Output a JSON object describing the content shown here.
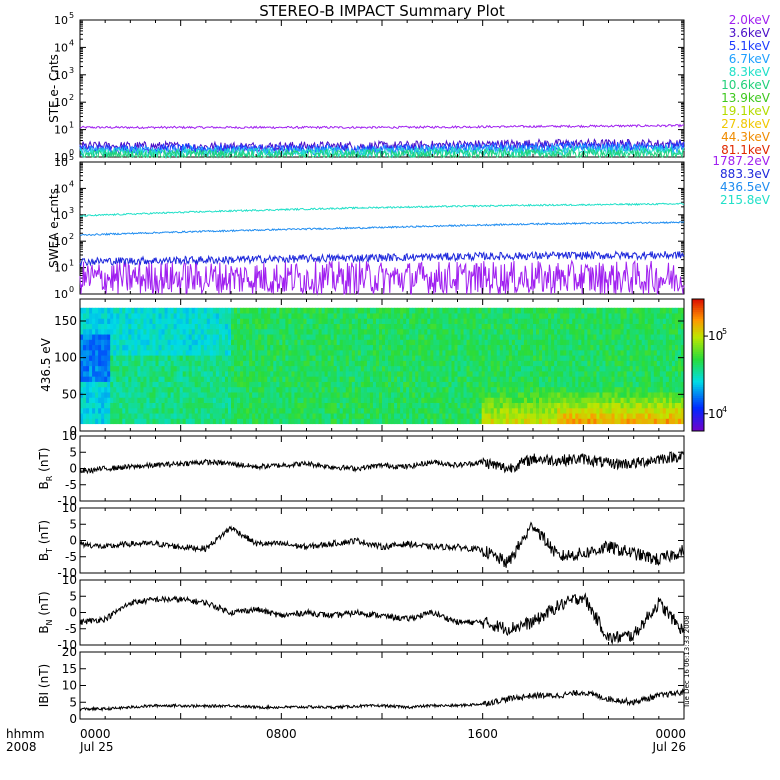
{
  "title": "STEREO-B IMPACT Summary Plot",
  "timestamp": "Tue Dec 16 06:13:33 2008",
  "time_axis": {
    "label_line1": "hhmm",
    "label_line2": "2008",
    "ticks": [
      {
        "hour": 0,
        "top": "0000",
        "bottom": "Jul 25"
      },
      {
        "hour": 8,
        "top": "0800",
        "bottom": ""
      },
      {
        "hour": 16,
        "top": "1600",
        "bottom": ""
      },
      {
        "hour": 24,
        "top": "0000",
        "bottom": "Jul 26"
      }
    ]
  },
  "ste_legend": [
    {
      "label": "2.0keV",
      "color": "#a020f0"
    },
    {
      "label": "3.6keV",
      "color": "#4b0fc8"
    },
    {
      "label": "5.1keV",
      "color": "#1e3cff"
    },
    {
      "label": "6.7keV",
      "color": "#1fa0ff"
    },
    {
      "label": "8.3keV",
      "color": "#20e0c8"
    },
    {
      "label": "10.6keV",
      "color": "#22d07a"
    },
    {
      "label": "13.9keV",
      "color": "#3ec81e"
    },
    {
      "label": "19.1keV",
      "color": "#b4dc00"
    },
    {
      "label": "27.8keV",
      "color": "#f0c800"
    },
    {
      "label": "44.3keV",
      "color": "#f08c00"
    },
    {
      "label": "81.1keV",
      "color": "#e02800"
    }
  ],
  "swea_legend": [
    {
      "label": "1787.2eV",
      "color": "#a020f0"
    },
    {
      "label": "883.3eV",
      "color": "#1e28dc"
    },
    {
      "label": "436.5eV",
      "color": "#1e8cf0"
    },
    {
      "label": "215.8eV",
      "color": "#20e0c8"
    }
  ],
  "panels": {
    "ste": {
      "ylabel": "STE e- Cnts",
      "yticks": [
        "10",
        "10",
        "10",
        "10",
        "10",
        "10"
      ],
      "yexp": [
        "0",
        "1",
        "2",
        "3",
        "4",
        "5"
      ]
    },
    "swea": {
      "ylabel": "SWEA e- cnts",
      "yticks": [
        "10",
        "10",
        "10",
        "10",
        "10",
        "10"
      ],
      "yexp": [
        "0",
        "1",
        "2",
        "3",
        "4",
        "5"
      ]
    },
    "spec": {
      "ylabel": "436.5 eV",
      "yticks": [
        "0",
        "50",
        "100",
        "150"
      ],
      "colorbar_ticks": [
        {
          "base": "10",
          "exp": "5"
        },
        {
          "base": "10",
          "exp": "4"
        }
      ]
    },
    "br": {
      "ylabel": "B",
      "ysub": "R",
      "yunit": "(nT)",
      "yticks": [
        "10",
        "5",
        "0",
        "-5",
        "-10"
      ]
    },
    "bt": {
      "ylabel": "B",
      "ysub": "T",
      "yunit": "(nT)",
      "yticks": [
        "10",
        "5",
        "0",
        "-5",
        "-10"
      ]
    },
    "bn": {
      "ylabel": "B",
      "ysub": "N",
      "yunit": "(nT)",
      "yticks": [
        "10",
        "5",
        "0",
        "-5",
        "-10"
      ]
    },
    "bmag": {
      "ylabel": "IBI",
      "yunit": "(nT)",
      "yticks": [
        "20",
        "15",
        "10",
        "5",
        "0"
      ]
    }
  },
  "chart_data": [
    {
      "type": "line",
      "panel": "ste",
      "x_unit": "hours since 2008-07-25 00:00",
      "xlim": [
        0,
        24
      ],
      "ylim": [
        1,
        100000
      ],
      "yscale": "log",
      "series": [
        {
          "name": "2.0keV",
          "x": [
            0,
            6,
            12,
            18,
            24
          ],
          "y": [
            12,
            12,
            12,
            13,
            14
          ]
        },
        {
          "name": "3.6keV",
          "x": [
            0,
            6,
            12,
            18,
            24
          ],
          "y": [
            2.5,
            2.4,
            2.5,
            3,
            3
          ]
        },
        {
          "name": "5.1keV",
          "x": [
            0,
            6,
            12,
            18,
            24
          ],
          "y": [
            2,
            2,
            2,
            2.4,
            2.5
          ]
        },
        {
          "name": "6.7keV",
          "x": [
            0,
            6,
            12,
            18,
            24
          ],
          "y": [
            1.7,
            1.7,
            1.7,
            2,
            2
          ]
        },
        {
          "name": "8.3keV",
          "x": [
            0,
            6,
            12,
            18,
            24
          ],
          "y": [
            1.4,
            1.4,
            1.4,
            1.6,
            1.6
          ]
        },
        {
          "name": "10.6keV",
          "x": [
            0,
            24
          ],
          "y": [
            1.2,
            1.3
          ]
        }
      ]
    },
    {
      "type": "line",
      "panel": "swea",
      "x_unit": "hours since 2008-07-25 00:00",
      "xlim": [
        0,
        24
      ],
      "ylim": [
        1,
        100000
      ],
      "yscale": "log",
      "series": [
        {
          "name": "1787.2eV",
          "x": [
            0,
            6,
            12,
            18,
            24
          ],
          "y": [
            4,
            4,
            4,
            4,
            4
          ]
        },
        {
          "name": "883.3eV",
          "x": [
            0,
            6,
            12,
            18,
            24
          ],
          "y": [
            17,
            20,
            24,
            28,
            30
          ]
        },
        {
          "name": "436.5eV",
          "x": [
            0,
            6,
            12,
            18,
            24
          ],
          "y": [
            170,
            250,
            330,
            450,
            520
          ]
        },
        {
          "name": "215.8eV",
          "x": [
            0,
            6,
            12,
            18,
            24
          ],
          "y": [
            900,
            1400,
            1900,
            2300,
            2600
          ]
        }
      ]
    },
    {
      "type": "heatmap",
      "panel": "spec",
      "x_unit": "hours since 2008-07-25 00:00",
      "xlim": [
        0,
        24
      ],
      "ylim": [
        0,
        180
      ],
      "ylabel": "436.5 eV",
      "color_scale": "log",
      "color_range": [
        6000,
        300000
      ]
    },
    {
      "type": "line",
      "panel": "br",
      "xlim": [
        0,
        24
      ],
      "ylim": [
        -10,
        10
      ],
      "x": [
        0,
        1,
        2,
        3,
        4,
        5,
        6,
        7,
        8,
        9,
        10,
        11,
        12,
        13,
        14,
        15,
        16,
        17,
        18,
        19,
        20,
        21,
        22,
        23,
        24
      ],
      "y": [
        -1,
        0,
        0.5,
        1,
        1.5,
        2,
        1.5,
        0.5,
        1,
        1.5,
        0.5,
        0,
        1,
        0.5,
        2,
        1,
        2,
        0,
        3,
        2.5,
        3,
        1.5,
        1.5,
        3,
        4
      ]
    },
    {
      "type": "line",
      "panel": "bt",
      "xlim": [
        0,
        24
      ],
      "ylim": [
        -10,
        10
      ],
      "x": [
        0,
        1,
        2,
        3,
        4,
        5,
        6,
        7,
        8,
        9,
        10,
        11,
        12,
        13,
        14,
        15,
        16,
        17,
        18,
        19,
        20,
        21,
        22,
        23,
        24
      ],
      "y": [
        -1,
        -2,
        -1,
        -1,
        -2,
        -2.5,
        4,
        -1,
        -1,
        -2,
        -1,
        0,
        -2,
        -1,
        -2,
        -2,
        -3,
        -7,
        5,
        -5,
        -4,
        -2,
        -4,
        -6,
        -3
      ]
    },
    {
      "type": "line",
      "panel": "bn",
      "xlim": [
        0,
        24
      ],
      "ylim": [
        -10,
        10
      ],
      "x": [
        0,
        1,
        2,
        3,
        4,
        5,
        6,
        7,
        8,
        9,
        10,
        11,
        12,
        13,
        14,
        15,
        16,
        17,
        18,
        19,
        20,
        21,
        22,
        23,
        24
      ],
      "y": [
        -3,
        -2,
        3,
        4,
        4,
        3,
        0,
        1,
        -1,
        0,
        -1,
        0,
        -1,
        -2,
        0,
        -3,
        -3,
        -5,
        -3,
        2,
        5,
        -8,
        -7,
        3,
        -6
      ]
    },
    {
      "type": "line",
      "panel": "bmag",
      "xlim": [
        0,
        24
      ],
      "ylim": [
        0,
        20
      ],
      "x": [
        0,
        1,
        2,
        3,
        4,
        5,
        6,
        7,
        8,
        9,
        10,
        11,
        12,
        13,
        14,
        15,
        16,
        17,
        18,
        19,
        20,
        21,
        22,
        23,
        24
      ],
      "y": [
        3,
        3,
        3.5,
        4,
        4,
        3.8,
        4,
        3.5,
        3.5,
        3.6,
        3.5,
        3.8,
        4,
        3.5,
        4,
        4,
        4.5,
        6,
        7,
        7,
        8,
        6,
        5,
        7,
        8
      ]
    }
  ]
}
